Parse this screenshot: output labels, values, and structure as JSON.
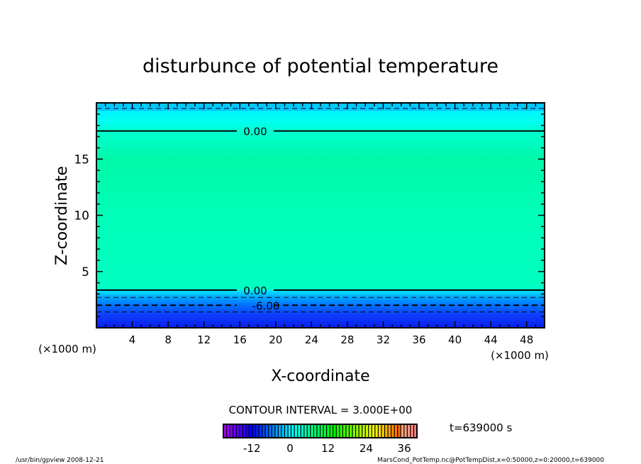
{
  "chart_data": {
    "type": "contour",
    "title": "disturbunce of potential temperature",
    "xlabel": "X-coordinate",
    "ylabel": "Z-coordinate",
    "x_unit_label": "(×1000 m)",
    "xlim": [
      0,
      50
    ],
    "ylim": [
      0,
      20
    ],
    "xticks": [
      4,
      8,
      12,
      16,
      20,
      24,
      28,
      32,
      36,
      40,
      44,
      48
    ],
    "yticks": [
      5,
      10,
      15
    ],
    "contours": [
      {
        "z": 19.5,
        "style": "dashed",
        "label": ""
      },
      {
        "z": 17.5,
        "style": "solid",
        "label": "0.00"
      },
      {
        "z": 3.35,
        "style": "solid",
        "label": "0.00"
      },
      {
        "z": 2.7,
        "style": "dashed",
        "label": ""
      },
      {
        "z": 2.0,
        "style": "dashed-bold",
        "label": "-6.00"
      },
      {
        "z": 1.4,
        "style": "dashed",
        "label": ""
      }
    ],
    "contour_interval_text": "CONTOUR INTERVAL = 3.000E+00",
    "colorbar": {
      "min": -21,
      "max": 40,
      "ticks": [
        "-12",
        "0",
        "12",
        "24",
        "36"
      ],
      "tick_values": [
        -12,
        0,
        12,
        24,
        36
      ]
    },
    "time_label": "t=639000 s"
  },
  "footer": {
    "program": "/usr/bin/gpview   2008-12-21",
    "source": "MarsCond_PotTemp.nc@PotTempDist,x=0:50000,z=0:20000,t=639000"
  }
}
